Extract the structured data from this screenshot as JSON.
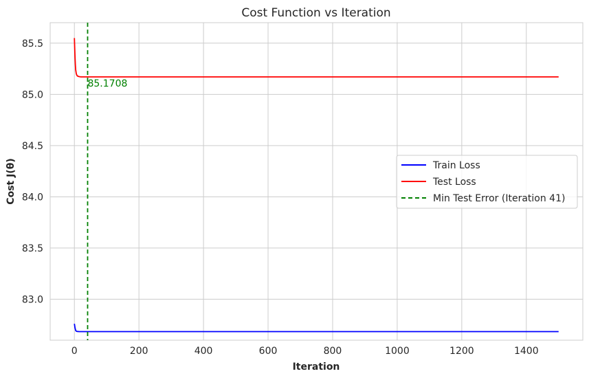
{
  "chart_data": {
    "type": "line",
    "title": "Cost Function vs Iteration",
    "xlabel": "Iteration",
    "ylabel": "Cost J(θ)",
    "xlim": [
      -75,
      1575
    ],
    "ylim": [
      82.6,
      85.7
    ],
    "xticks": [
      0,
      200,
      400,
      600,
      800,
      1000,
      1200,
      1400
    ],
    "yticks": [
      83.0,
      83.5,
      84.0,
      84.5,
      85.0,
      85.5
    ],
    "ytick_labels": [
      "83.0",
      "83.5",
      "84.0",
      "84.5",
      "85.0",
      "85.5"
    ],
    "grid": true,
    "legend_position": "center-right",
    "series": [
      {
        "name": "Train Loss",
        "color": "#0000ff",
        "x": [
          0,
          2,
          4,
          6,
          8,
          10,
          15,
          20,
          30,
          41,
          100,
          300,
          600,
          1000,
          1500
        ],
        "y": [
          82.76,
          82.72,
          82.695,
          82.688,
          82.686,
          82.685,
          82.684,
          82.684,
          82.684,
          82.684,
          82.684,
          82.684,
          82.684,
          82.684,
          82.684
        ]
      },
      {
        "name": "Test Loss",
        "color": "#ff0000",
        "x": [
          0,
          1,
          2,
          3,
          4,
          6,
          8,
          10,
          15,
          20,
          30,
          41,
          100,
          300,
          600,
          1000,
          1500
        ],
        "y": [
          85.55,
          85.45,
          85.36,
          85.29,
          85.24,
          85.2,
          85.185,
          85.178,
          85.173,
          85.171,
          85.1709,
          85.1708,
          85.1708,
          85.1708,
          85.1708,
          85.1708,
          85.1708
        ]
      }
    ],
    "vline": {
      "name": "Min Test Error (Iteration 41)",
      "x": 41,
      "color": "#008000",
      "style": "dashed"
    },
    "annotation": {
      "text": "85.1708",
      "x": 41,
      "y": 85.1708,
      "color": "#008000"
    }
  }
}
